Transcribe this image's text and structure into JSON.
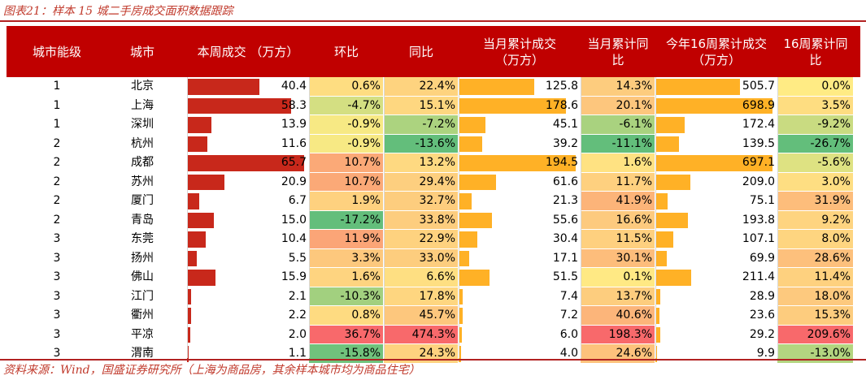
{
  "caption": "图表21：样本 15 城二手房成交面积数据跟踪",
  "source": "资料来源：Wind，国盛证券研究所（上海为商品房，其余样本城市均为商品住宅）",
  "colors": {
    "header_bg": "#c00000",
    "bar_red": "#c8281b",
    "bar_orange": "#ffb126"
  },
  "headers": {
    "tier": "城市能级",
    "city": "城市",
    "weekly": "本周成交 （万方）",
    "wow": "环比",
    "yoy": "同比",
    "month_cum": "当月累计成交（万方）",
    "month_yoy": "当月累计同比",
    "ytd": "今年16周累计成交（万方）",
    "ytd_yoy": "16周累计同比"
  },
  "rows": [
    {
      "tier": "1",
      "city": "北京",
      "weekly": "40.4",
      "wow": "0.6%",
      "yoy": "22.4%",
      "month_cum": "125.8",
      "month_yoy": "14.3%",
      "ytd": "505.7",
      "ytd_yoy": "0.0%"
    },
    {
      "tier": "1",
      "city": "上海",
      "weekly": "58.3",
      "wow": "-4.7%",
      "yoy": "15.1%",
      "month_cum": "178.6",
      "month_yoy": "20.1%",
      "ytd": "698.9",
      "ytd_yoy": "3.5%"
    },
    {
      "tier": "1",
      "city": "深圳",
      "weekly": "13.9",
      "wow": "-0.9%",
      "yoy": "-7.2%",
      "month_cum": "45.1",
      "month_yoy": "-6.1%",
      "ytd": "172.4",
      "ytd_yoy": "-9.2%"
    },
    {
      "tier": "2",
      "city": "杭州",
      "weekly": "11.6",
      "wow": "-0.9%",
      "yoy": "-13.6%",
      "month_cum": "39.2",
      "month_yoy": "-11.1%",
      "ytd": "139.5",
      "ytd_yoy": "-26.7%"
    },
    {
      "tier": "2",
      "city": "成都",
      "weekly": "65.7",
      "wow": "10.7%",
      "yoy": "13.2%",
      "month_cum": "194.5",
      "month_yoy": "1.6%",
      "ytd": "697.1",
      "ytd_yoy": "-5.6%"
    },
    {
      "tier": "2",
      "city": "苏州",
      "weekly": "20.9",
      "wow": "10.7%",
      "yoy": "29.4%",
      "month_cum": "61.6",
      "month_yoy": "11.7%",
      "ytd": "209.0",
      "ytd_yoy": "3.0%"
    },
    {
      "tier": "2",
      "city": "厦门",
      "weekly": "6.7",
      "wow": "1.9%",
      "yoy": "32.7%",
      "month_cum": "21.3",
      "month_yoy": "41.9%",
      "ytd": "75.1",
      "ytd_yoy": "31.9%"
    },
    {
      "tier": "2",
      "city": "青岛",
      "weekly": "15.0",
      "wow": "-17.2%",
      "yoy": "33.8%",
      "month_cum": "55.6",
      "month_yoy": "16.6%",
      "ytd": "193.8",
      "ytd_yoy": "9.2%"
    },
    {
      "tier": "3",
      "city": "东莞",
      "weekly": "10.4",
      "wow": "11.9%",
      "yoy": "22.9%",
      "month_cum": "30.4",
      "month_yoy": "11.5%",
      "ytd": "107.1",
      "ytd_yoy": "8.0%"
    },
    {
      "tier": "3",
      "city": "扬州",
      "weekly": "5.5",
      "wow": "3.3%",
      "yoy": "33.0%",
      "month_cum": "17.1",
      "month_yoy": "30.1%",
      "ytd": "69.9",
      "ytd_yoy": "28.6%"
    },
    {
      "tier": "3",
      "city": "佛山",
      "weekly": "15.9",
      "wow": "1.6%",
      "yoy": "6.6%",
      "month_cum": "51.5",
      "month_yoy": "0.1%",
      "ytd": "211.4",
      "ytd_yoy": "11.4%"
    },
    {
      "tier": "3",
      "city": "江门",
      "weekly": "2.1",
      "wow": "-10.3%",
      "yoy": "17.8%",
      "month_cum": "7.4",
      "month_yoy": "13.7%",
      "ytd": "28.9",
      "ytd_yoy": "18.0%"
    },
    {
      "tier": "3",
      "city": "衢州",
      "weekly": "2.2",
      "wow": "0.8%",
      "yoy": "45.7%",
      "month_cum": "7.2",
      "month_yoy": "40.6%",
      "ytd": "23.6",
      "ytd_yoy": "15.3%"
    },
    {
      "tier": "3",
      "city": "平凉",
      "weekly": "2.0",
      "wow": "36.7%",
      "yoy": "474.3%",
      "month_cum": "6.0",
      "month_yoy": "198.3%",
      "ytd": "29.2",
      "ytd_yoy": "209.6%"
    },
    {
      "tier": "3",
      "city": "渭南",
      "weekly": "1.1",
      "wow": "-15.8%",
      "yoy": "24.3%",
      "month_cum": "4.0",
      "month_yoy": "24.6%",
      "ytd": "9.9",
      "ytd_yoy": "-13.0%"
    }
  ]
}
